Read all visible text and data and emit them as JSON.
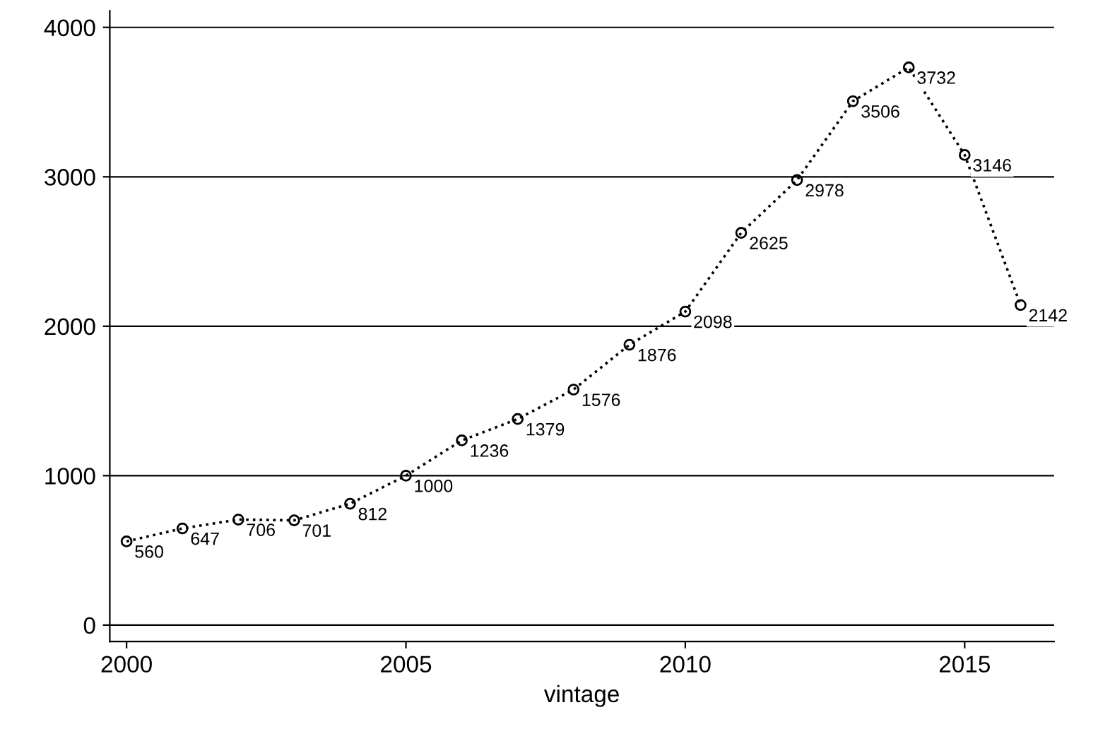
{
  "chart_data": {
    "type": "line",
    "xlabel": "vintage",
    "x": [
      2000,
      2001,
      2002,
      2003,
      2004,
      2005,
      2006,
      2007,
      2008,
      2009,
      2010,
      2011,
      2012,
      2013,
      2014,
      2015,
      2016
    ],
    "series": [
      {
        "color": "#000000",
        "values": [
          560,
          647,
          706,
          701,
          812,
          1000,
          1236,
          1379,
          1576,
          1876,
          2098,
          2625,
          2978,
          3506,
          3732,
          3146,
          2142
        ]
      }
    ],
    "xlim": [
      1999.7,
      2016.6
    ],
    "xticks": [
      2000,
      2005,
      2010,
      2015
    ],
    "ylim": [
      -110,
      4110
    ],
    "yticks": [
      0,
      1000,
      2000,
      3000,
      4000
    ],
    "grid": "y",
    "marker": "circle",
    "line_style": "dotted",
    "data_labels": true
  }
}
